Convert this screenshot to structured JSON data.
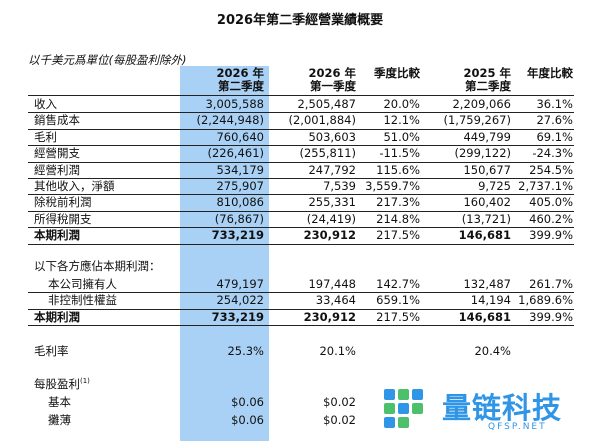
{
  "title": "2026年第二季經營業績概要",
  "unit_note": "以千美元爲單位(每股盈利除外)",
  "headers": [
    {
      "line1": "2026 年",
      "line2": "第二季度"
    },
    {
      "line1": "2026 年",
      "line2": "第一季度"
    },
    {
      "line1": "季度比較",
      "line2": ""
    },
    {
      "line1": "2025 年",
      "line2": "第二季度"
    },
    {
      "line1": "年度比較",
      "line2": ""
    }
  ],
  "rows": [
    {
      "label": "收入",
      "values": [
        "3,005,588",
        "2,505,487",
        "20.0%",
        "2,209,066",
        "36.1%"
      ]
    },
    {
      "label": "銷售成本",
      "values": [
        "(2,244,948)",
        "(2,001,884)",
        "12.1%",
        "(1,759,267)",
        "27.6%"
      ]
    },
    {
      "label": "毛利",
      "values": [
        "760,640",
        "503,603",
        "51.0%",
        "449,799",
        "69.1%"
      ]
    },
    {
      "label": "經營開支",
      "values": [
        "(226,461)",
        "(255,811)",
        "-11.5%",
        "(299,122)",
        "-24.3%"
      ]
    },
    {
      "label": "經營利潤",
      "values": [
        "534,179",
        "247,792",
        "115.6%",
        "150,677",
        "254.5%"
      ]
    },
    {
      "label": "其他收入，淨額",
      "values": [
        "275,907",
        "7,539",
        "3,559.7%",
        "9,725",
        "2,737.1%"
      ]
    },
    {
      "label": "除稅前利潤",
      "values": [
        "810,086",
        "255,331",
        "217.3%",
        "160,402",
        "405.0%"
      ]
    },
    {
      "label": "所得稅開支",
      "values": [
        "(76,867)",
        "(24,419)",
        "214.8%",
        "(13,721)",
        "460.2%"
      ]
    },
    {
      "label": "本期利潤",
      "values": [
        "733,219",
        "230,912",
        "217.5%",
        "146,681",
        "399.9%"
      ]
    }
  ],
  "attrib_heading": "以下各方應佔本期利潤：",
  "attrib_rows": [
    {
      "label": "本公司擁有人",
      "values": [
        "479,197",
        "197,448",
        "142.7%",
        "132,487",
        "261.7%"
      ]
    },
    {
      "label": "非控制性權益",
      "values": [
        "254,022",
        "33,464",
        "659.1%",
        "14,194",
        "1,689.6%"
      ]
    },
    {
      "label": "本期利潤",
      "values": [
        "733,219",
        "230,912",
        "217.5%",
        "146,681",
        "399.9%"
      ]
    }
  ],
  "gross_margin": {
    "label": "毛利率",
    "values": [
      "25.3%",
      "20.1%",
      "",
      "20.4%",
      ""
    ]
  },
  "eps_heading": "每股盈利",
  "eps_sup": "(1)",
  "eps_rows": [
    {
      "label": "基本",
      "values": [
        "$0.06",
        "$0.02",
        "",
        "",
        ""
      ]
    },
    {
      "label": "攤薄",
      "values": [
        "$0.06",
        "$0.02",
        "",
        "",
        ""
      ]
    }
  ],
  "watermark": {
    "text": "量链科技",
    "sub": "QFSP.NET",
    "colors": [
      "#2f95e6",
      "#4cc06a"
    ]
  }
}
